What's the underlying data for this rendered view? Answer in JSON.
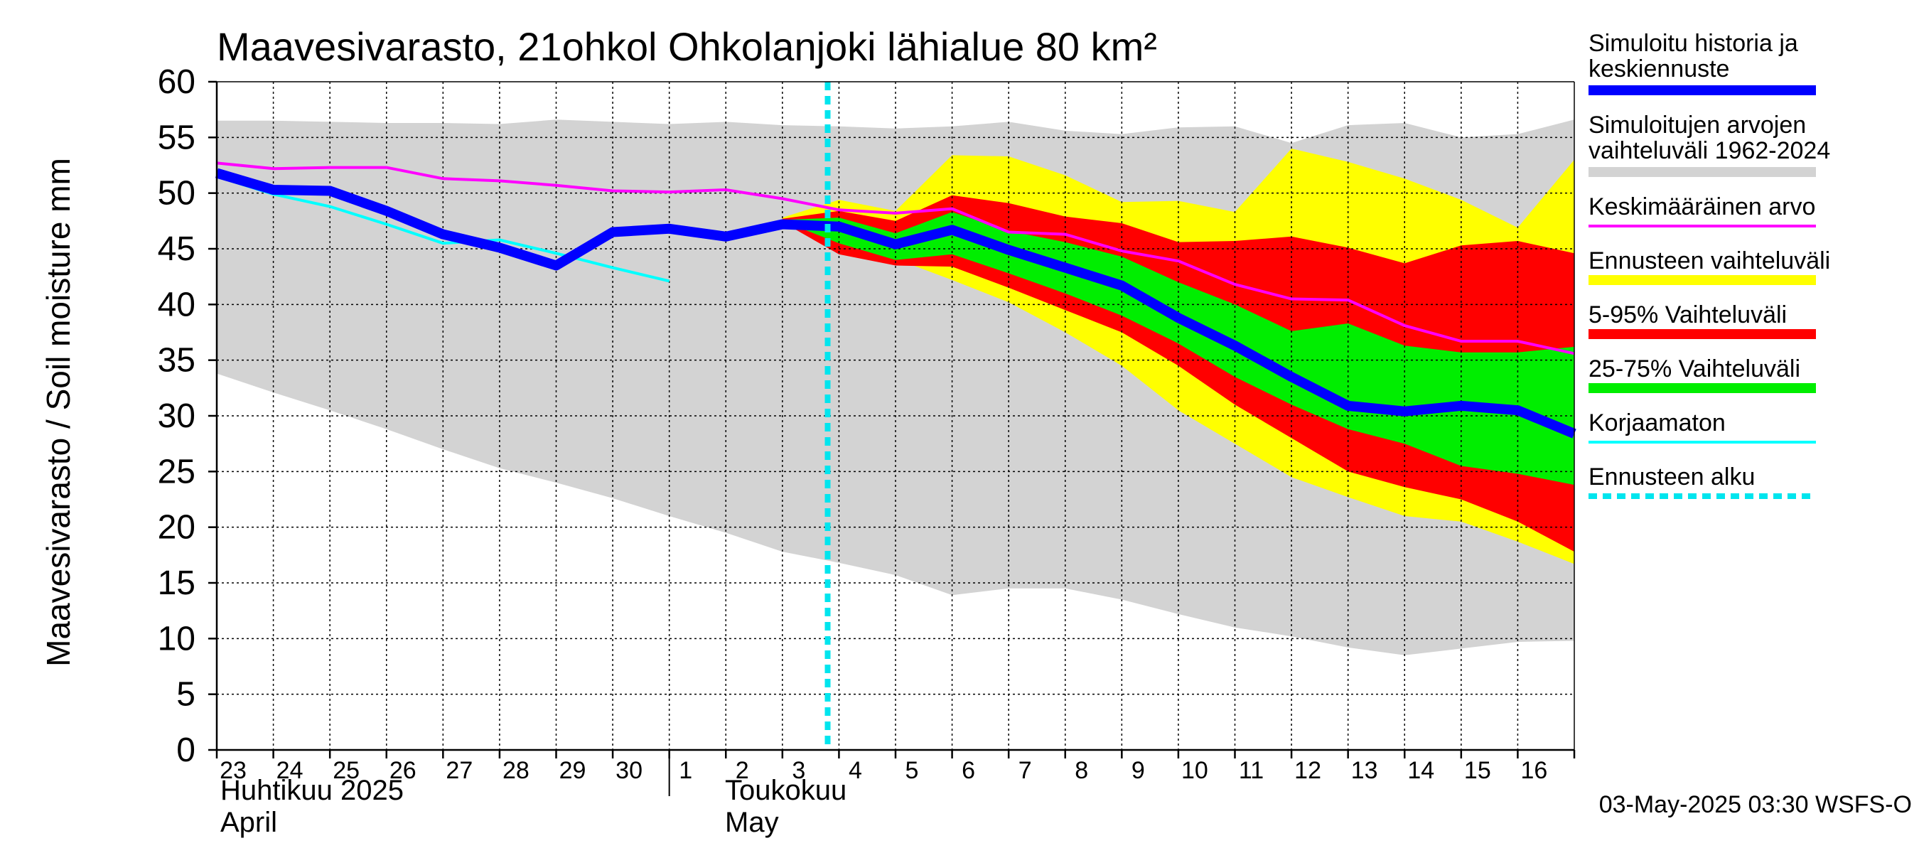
{
  "chart_data": {
    "type": "area",
    "title": "Maavesivarasto, 21ohkol Ohkolanjoki lähialue 80 km²",
    "ylabel": "Maavesivarasto / Soil moisture   mm",
    "xlabel": "",
    "ylim": [
      0,
      60
    ],
    "yticks": [
      "0",
      "5",
      "10",
      "15",
      "20",
      "25",
      "30",
      "35",
      "40",
      "45",
      "50",
      "55",
      "60"
    ],
    "grid": true,
    "x_day_labels": [
      "23",
      "24",
      "25",
      "26",
      "27",
      "28",
      "29",
      "30",
      "1",
      "2",
      "3",
      "4",
      "5",
      "6",
      "7",
      "8",
      "9",
      "10",
      "11",
      "12",
      "13",
      "14",
      "15",
      "16"
    ],
    "months": [
      {
        "fi": "Huhtikuu  2025",
        "en": "April"
      },
      {
        "fi": "Toukokuu",
        "en": "May"
      }
    ],
    "forecast_start_day": 10.8,
    "timestamp": "03-May-2025 03:30 WSFS-O",
    "legend": [
      {
        "label1": "Simuloitu historia ja",
        "label2": "keskiennuste",
        "color": "#0000ff",
        "style": "thick"
      },
      {
        "label1": "Simuloitujen arvojen",
        "label2": "vaihteluväli 1962-2024",
        "color": "#d3d3d3",
        "style": "thick"
      },
      {
        "label1": "Keskimääräinen arvo",
        "label2": "",
        "color": "#ff00ff",
        "style": "thin"
      },
      {
        "label1": "Ennusteen vaihteluväli",
        "label2": "",
        "color": "#ffff00",
        "style": "thick"
      },
      {
        "label1": "5-95% Vaihteluväli",
        "label2": "",
        "color": "#ff0000",
        "style": "thick"
      },
      {
        "label1": "25-75% Vaihteluväli",
        "label2": "",
        "color": "#00ee00",
        "style": "thick"
      },
      {
        "label1": "Korjaamaton",
        "label2": "",
        "color": "#00ffff",
        "style": "thin"
      },
      {
        "label1": "Ennusteen alku",
        "label2": "",
        "color": "#00e5ee",
        "style": "dotted"
      }
    ],
    "series": {
      "hist_range_x": [
        0,
        1,
        2,
        3,
        4,
        5,
        6,
        7,
        8,
        9,
        10,
        11,
        12,
        13,
        14,
        15,
        16,
        17,
        18,
        19,
        20,
        21,
        22,
        23,
        24
      ],
      "hist_range_upper": [
        56.5,
        56.5,
        56.4,
        56.3,
        56.3,
        56.2,
        56.6,
        56.4,
        56.2,
        56.4,
        56.1,
        56.0,
        55.8,
        56.0,
        56.4,
        55.6,
        55.3,
        55.9,
        56.0,
        54.5,
        56.1,
        56.3,
        55.0,
        55.3,
        56.6
      ],
      "hist_range_lower": [
        33.8,
        32.1,
        30.5,
        28.8,
        27.0,
        25.3,
        24.0,
        22.6,
        21.0,
        19.5,
        17.8,
        16.8,
        15.7,
        13.9,
        14.5,
        14.5,
        13.5,
        12.2,
        11.0,
        10.2,
        9.2,
        8.5,
        9.1,
        9.7,
        9.8
      ],
      "fc_x": [
        10,
        11,
        12,
        13,
        14,
        15,
        16,
        17,
        18,
        19,
        20,
        21,
        22,
        23,
        24
      ],
      "fc_min": [
        47.2,
        45.3,
        44.1,
        42.2,
        40.2,
        37.5,
        34.5,
        30.5,
        27.5,
        24.5,
        22.7,
        21.0,
        20.5,
        18.7,
        16.7
      ],
      "fc_max": [
        47.8,
        49.4,
        48.4,
        53.4,
        53.3,
        51.6,
        49.2,
        49.3,
        48.3,
        54.0,
        52.8,
        51.3,
        49.4,
        46.9,
        53.0
      ],
      "p5": [
        47.4,
        44.5,
        43.5,
        43.4,
        41.5,
        39.5,
        37.5,
        34.5,
        31.0,
        28.0,
        25.0,
        23.6,
        22.5,
        20.5,
        17.8
      ],
      "p95": [
        47.7,
        48.4,
        47.5,
        49.8,
        49.1,
        47.9,
        47.3,
        45.6,
        45.7,
        46.1,
        45.1,
        43.7,
        45.3,
        45.7,
        44.6
      ],
      "p25": [
        47.5,
        45.5,
        44.0,
        44.5,
        42.8,
        41.0,
        39.0,
        36.5,
        33.5,
        31.0,
        28.8,
        27.5,
        25.5,
        24.8,
        23.8
      ],
      "p75": [
        47.6,
        47.8,
        46.4,
        48.3,
        46.6,
        45.6,
        44.3,
        42.0,
        40.0,
        37.6,
        38.3,
        36.3,
        35.7,
        35.7,
        36.2
      ],
      "mean_x": [
        0,
        1,
        2,
        3,
        4,
        5,
        6,
        7,
        8,
        9,
        10,
        11,
        12,
        13,
        14,
        15,
        16,
        17,
        18,
        19,
        20,
        21,
        22,
        23,
        24
      ],
      "mean": [
        52.7,
        52.2,
        52.3,
        52.3,
        51.3,
        51.1,
        50.7,
        50.2,
        50.1,
        50.3,
        49.5,
        48.5,
        48.2,
        48.6,
        46.5,
        46.3,
        44.8,
        43.9,
        41.8,
        40.5,
        40.4,
        38.1,
        36.7,
        36.7,
        35.6
      ],
      "uncorrected_x": [
        0,
        1,
        2,
        3,
        4,
        5,
        6,
        7,
        8
      ],
      "uncorrected": [
        51.5,
        49.9,
        48.8,
        47.2,
        45.5,
        45.8,
        44.6,
        43.3,
        42.1
      ],
      "main_x": [
        0,
        1,
        2,
        3,
        4,
        5,
        6,
        7,
        8,
        9,
        10,
        11,
        12,
        13,
        14,
        15,
        16,
        17,
        18,
        19,
        20,
        21,
        22,
        23,
        24
      ],
      "main": [
        51.8,
        50.3,
        50.2,
        48.4,
        46.3,
        45.1,
        43.5,
        46.5,
        46.8,
        46.1,
        47.2,
        47.0,
        45.4,
        46.7,
        44.9,
        43.3,
        41.7,
        38.8,
        36.3,
        33.5,
        30.9,
        30.4,
        30.9,
        30.5,
        28.4
      ]
    }
  }
}
